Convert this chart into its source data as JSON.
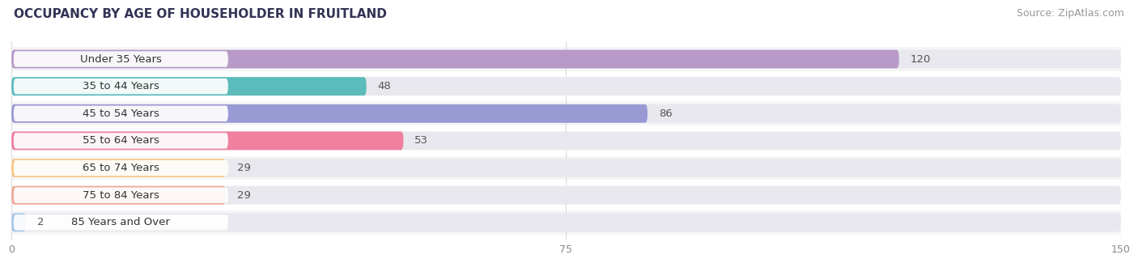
{
  "title": "OCCUPANCY BY AGE OF HOUSEHOLDER IN FRUITLAND",
  "source": "Source: ZipAtlas.com",
  "categories": [
    "Under 35 Years",
    "35 to 44 Years",
    "45 to 54 Years",
    "55 to 64 Years",
    "65 to 74 Years",
    "75 to 84 Years",
    "85 Years and Over"
  ],
  "values": [
    120,
    48,
    86,
    53,
    29,
    29,
    2
  ],
  "bar_colors": [
    "#b899c8",
    "#5bbcbb",
    "#9999d4",
    "#f07fa0",
    "#f5c98a",
    "#f0a898",
    "#a8c8e8"
  ],
  "xlim": [
    0,
    150
  ],
  "xticks": [
    0,
    75,
    150
  ],
  "background_color": "#ffffff",
  "bar_bg_color": "#e8e8ee",
  "row_bg_colors": [
    "#f5f5f8",
    "#ffffff"
  ],
  "title_fontsize": 11,
  "source_fontsize": 9,
  "label_fontsize": 9.5,
  "value_fontsize": 9.5
}
